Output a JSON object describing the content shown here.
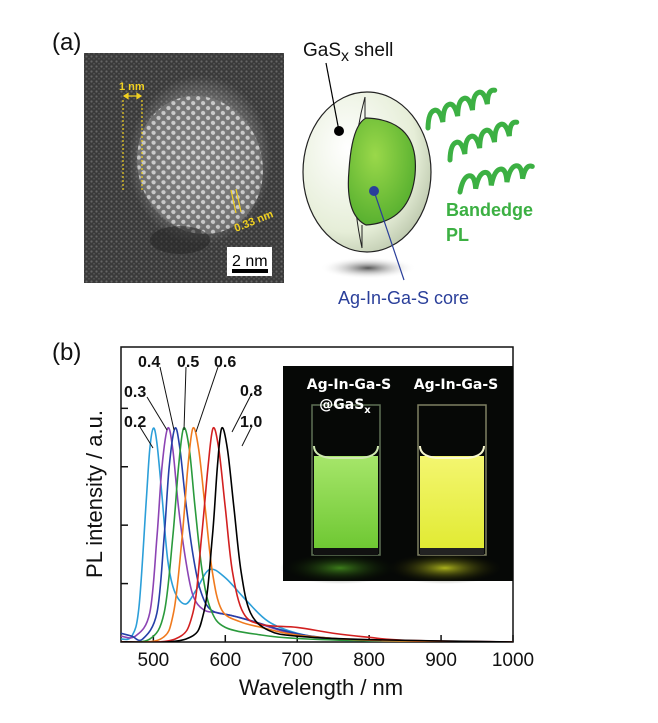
{
  "panel_a": {
    "label": "(a)",
    "tem": {
      "lattice_width_label": "1 nm",
      "spacing_label": "0.33 nm",
      "scale_bar_label": "2 nm"
    },
    "schematic": {
      "shell_label": "GaS",
      "shell_subscript": "x",
      "shell_suffix": " shell",
      "core_label": "Ag-In-Ga-S core",
      "emission_label_line1": "Bandedge",
      "emission_label_line2": "PL",
      "colors": {
        "core": "#5cb82e",
        "shell": "#e8f0dc",
        "emission": "#3cb043",
        "core_label": "#2a3f9a"
      }
    }
  },
  "panel_b": {
    "label": "(b)",
    "inset": {
      "left_vial_label_line1": "Ag-In-Ga-S",
      "left_vial_label_line2": "@GaS",
      "left_vial_label_subscript": "x",
      "right_vial_label": "Ag-In-Ga-S",
      "colors": {
        "left_glow": "#7ed321",
        "right_glow": "#e8f030"
      }
    }
  },
  "chart_data": {
    "type": "line",
    "title": "",
    "xlabel": "Wavelength / nm",
    "ylabel": "PL intensity / a.u.",
    "xlim": [
      455,
      1000
    ],
    "ylim": [
      0,
      5.05
    ],
    "xticks": [
      500,
      600,
      700,
      800,
      900,
      1000
    ],
    "xtick_labels": [
      "500",
      "600",
      "700",
      "800",
      "900",
      "1000"
    ],
    "yticks": [
      1,
      2,
      3,
      4
    ],
    "ytick_labels_shown": false,
    "grid": false,
    "legend": "inline labels above peaks",
    "series": [
      {
        "name": "0.2",
        "color": "#2c9fd9",
        "points": [
          [
            455,
            0.05
          ],
          [
            470,
            0.1
          ],
          [
            480,
            0.6
          ],
          [
            490,
            2.4
          ],
          [
            495,
            3.3
          ],
          [
            500,
            3.66
          ],
          [
            505,
            3.4
          ],
          [
            512,
            2.5
          ],
          [
            520,
            1.4
          ],
          [
            530,
            0.85
          ],
          [
            545,
            0.65
          ],
          [
            560,
            0.9
          ],
          [
            578,
            1.24
          ],
          [
            600,
            1.1
          ],
          [
            630,
            0.7
          ],
          [
            660,
            0.35
          ],
          [
            700,
            0.15
          ],
          [
            750,
            0.05
          ],
          [
            800,
            0.02
          ],
          [
            1000,
            0
          ]
        ]
      },
      {
        "name": "0.3",
        "color": "#8c44b4",
        "points": [
          [
            455,
            0.1
          ],
          [
            475,
            0.1
          ],
          [
            495,
            0.5
          ],
          [
            505,
            1.8
          ],
          [
            512,
            3.0
          ],
          [
            520,
            3.66
          ],
          [
            527,
            3.3
          ],
          [
            535,
            2.3
          ],
          [
            545,
            1.4
          ],
          [
            555,
            0.8
          ],
          [
            570,
            0.55
          ],
          [
            590,
            0.5
          ],
          [
            620,
            0.42
          ],
          [
            650,
            0.3
          ],
          [
            700,
            0.12
          ],
          [
            750,
            0.05
          ],
          [
            800,
            0.02
          ],
          [
            1000,
            0
          ]
        ]
      },
      {
        "name": "0.4",
        "color": "#2540a8",
        "points": [
          [
            455,
            0.15
          ],
          [
            470,
            0.1
          ],
          [
            485,
            0.05
          ],
          [
            505,
            0.5
          ],
          [
            515,
            1.8
          ],
          [
            522,
            3.0
          ],
          [
            530,
            3.66
          ],
          [
            537,
            3.3
          ],
          [
            545,
            2.4
          ],
          [
            555,
            1.5
          ],
          [
            565,
            0.9
          ],
          [
            580,
            0.55
          ],
          [
            610,
            0.45
          ],
          [
            640,
            0.35
          ],
          [
            680,
            0.2
          ],
          [
            720,
            0.1
          ],
          [
            800,
            0.03
          ],
          [
            1000,
            0
          ]
        ]
      },
      {
        "name": "0.5",
        "color": "#2a9a3c",
        "points": [
          [
            455,
            0
          ],
          [
            495,
            0.05
          ],
          [
            515,
            0.5
          ],
          [
            527,
            1.8
          ],
          [
            535,
            3.0
          ],
          [
            542,
            3.66
          ],
          [
            550,
            3.3
          ],
          [
            558,
            2.3
          ],
          [
            568,
            1.2
          ],
          [
            580,
            0.55
          ],
          [
            600,
            0.25
          ],
          [
            650,
            0.12
          ],
          [
            700,
            0.06
          ],
          [
            800,
            0.02
          ],
          [
            1000,
            0
          ]
        ]
      },
      {
        "name": "0.6",
        "color": "#f07a1e",
        "points": [
          [
            455,
            0
          ],
          [
            510,
            0.05
          ],
          [
            528,
            0.5
          ],
          [
            540,
            1.8
          ],
          [
            548,
            3.0
          ],
          [
            555,
            3.66
          ],
          [
            563,
            3.3
          ],
          [
            572,
            2.3
          ],
          [
            582,
            1.2
          ],
          [
            595,
            0.55
          ],
          [
            620,
            0.35
          ],
          [
            650,
            0.25
          ],
          [
            700,
            0.12
          ],
          [
            800,
            0.03
          ],
          [
            1000,
            0
          ]
        ]
      },
      {
        "name": "0.8",
        "color": "#d22020",
        "points": [
          [
            455,
            0
          ],
          [
            530,
            0.05
          ],
          [
            555,
            0.5
          ],
          [
            567,
            1.8
          ],
          [
            576,
            3.0
          ],
          [
            583,
            3.66
          ],
          [
            591,
            3.3
          ],
          [
            600,
            2.3
          ],
          [
            610,
            1.2
          ],
          [
            625,
            0.5
          ],
          [
            650,
            0.3
          ],
          [
            700,
            0.25
          ],
          [
            750,
            0.15
          ],
          [
            800,
            0.08
          ],
          [
            850,
            0.03
          ],
          [
            1000,
            0
          ]
        ]
      },
      {
        "name": "1.0",
        "color": "#000000",
        "points": [
          [
            455,
            0
          ],
          [
            545,
            0.05
          ],
          [
            570,
            0.5
          ],
          [
            582,
            1.8
          ],
          [
            589,
            3.0
          ],
          [
            595,
            3.66
          ],
          [
            603,
            3.3
          ],
          [
            612,
            2.3
          ],
          [
            622,
            1.2
          ],
          [
            635,
            0.5
          ],
          [
            660,
            0.2
          ],
          [
            700,
            0.1
          ],
          [
            800,
            0.04
          ],
          [
            1000,
            0
          ]
        ]
      }
    ]
  }
}
